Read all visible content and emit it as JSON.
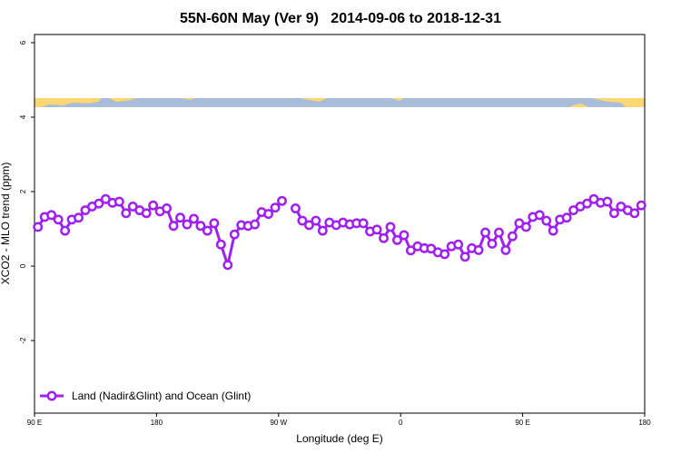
{
  "chart_data": {
    "type": "line",
    "title": "55N-60N May (Ver 9)   2014-09-06 to 2018-12-31",
    "x_label": "Longitude (deg E)",
    "y_label": "XCO2 - MLO trend (ppm)",
    "x": [
      92.5,
      97.5,
      102.5,
      107.5,
      112.5,
      117.5,
      122.5,
      127.5,
      132.5,
      137.5,
      142.5,
      147.5,
      152.5,
      157.5,
      162.5,
      167.5,
      172.5,
      177.5,
      182.5,
      187.5,
      192.5,
      197.5,
      202.5,
      207.5,
      212.5,
      217.5,
      222.5,
      227.5,
      232.5,
      237.5,
      242.5,
      247.5,
      252.5,
      257.5,
      262.5,
      267.5,
      272.5,
      277.5,
      282.5,
      287.5,
      292.5,
      297.5,
      302.5,
      307.5,
      312.5,
      317.5,
      322.5,
      327.5,
      332.5,
      337.5,
      342.5,
      347.5,
      352.5,
      357.5,
      362.5,
      367.5,
      372.5,
      377.5,
      382.5,
      387.5,
      392.5,
      397.5,
      402.5,
      407.5,
      412.5,
      417.5,
      422.5,
      427.5,
      432.5,
      437.5,
      442.5,
      447.5,
      452.5,
      457.5,
      462.5,
      467.5,
      472.5,
      477.5,
      482.5,
      487.5,
      492.5,
      497.5,
      502.5,
      507.5,
      512.5,
      517.5,
      522.5,
      527.5,
      532.5,
      537.5
    ],
    "series": [
      {
        "name": "Land (Nadir&Glint) and Ocean (Glint)",
        "color": "#a020f0",
        "values": [
          1.05,
          1.32,
          1.37,
          1.25,
          0.95,
          1.25,
          1.3,
          1.5,
          1.6,
          1.68,
          1.8,
          1.7,
          1.73,
          1.42,
          1.6,
          1.5,
          1.42,
          1.63,
          1.47,
          1.55,
          1.08,
          1.3,
          1.12,
          1.27,
          1.08,
          0.95,
          1.15,
          0.58,
          0.03,
          0.85,
          1.1,
          1.08,
          1.12,
          1.45,
          1.4,
          1.57,
          1.75,
          null,
          1.55,
          1.22,
          1.1,
          1.22,
          0.95,
          1.17,
          1.1,
          1.17,
          1.12,
          1.15,
          1.15,
          0.93,
          0.98,
          0.75,
          1.05,
          0.7,
          0.83,
          0.42,
          0.53,
          0.48,
          0.47,
          0.37,
          0.32,
          0.53,
          0.58,
          0.25,
          0.48,
          0.43,
          0.9,
          0.6,
          0.9,
          0.43,
          0.8,
          1.15,
          1.05,
          1.32,
          1.37,
          1.22,
          0.95,
          1.25,
          1.3,
          1.5,
          1.6,
          1.68,
          1.8,
          1.7,
          1.73,
          1.42,
          1.6,
          1.5,
          1.42,
          1.63
        ]
      }
    ],
    "xlim": [
      90,
      540
    ],
    "xticks": [
      {
        "value": 90,
        "label": "90 E"
      },
      {
        "value": 180,
        "label": "180"
      },
      {
        "value": 270,
        "label": "90 W"
      },
      {
        "value": 360,
        "label": "0"
      },
      {
        "value": 450,
        "label": "90 E"
      },
      {
        "value": 540,
        "label": "180"
      }
    ],
    "ylim": [
      -3.95,
      6.22
    ],
    "yticks": [
      -2,
      0,
      2,
      4,
      6
    ],
    "legend": "bottom-left"
  }
}
